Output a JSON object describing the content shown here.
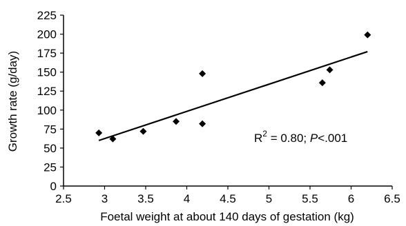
{
  "chart_data": {
    "type": "scatter",
    "xlabel": "Foetal weight at about 140 days of gestation (kg)",
    "ylabel": "Growth rate (g/day)",
    "xlim": [
      2.5,
      6.5
    ],
    "ylim": [
      0,
      225
    ],
    "x_ticks": [
      2.5,
      3,
      3.5,
      4,
      4.5,
      5,
      5.5,
      6,
      6.5
    ],
    "x_tick_labels": [
      "2.5",
      "3",
      "3.5",
      "4",
      "4.5",
      "5",
      "5.5",
      "6",
      "6.5"
    ],
    "y_ticks": [
      0,
      25,
      50,
      75,
      100,
      125,
      150,
      175,
      200,
      225
    ],
    "y_tick_labels": [
      "0",
      "25",
      "50",
      "75",
      "100",
      "125",
      "150",
      "175",
      "200",
      "225"
    ],
    "grid": false,
    "marker": "diamond",
    "marker_color": "#000000",
    "points": [
      {
        "x": 2.93,
        "y": 70
      },
      {
        "x": 3.1,
        "y": 62
      },
      {
        "x": 3.47,
        "y": 72
      },
      {
        "x": 3.87,
        "y": 85
      },
      {
        "x": 4.19,
        "y": 148
      },
      {
        "x": 4.19,
        "y": 82
      },
      {
        "x": 5.65,
        "y": 136
      },
      {
        "x": 5.74,
        "y": 153
      },
      {
        "x": 6.2,
        "y": 199
      }
    ],
    "trendline": {
      "x": [
        2.93,
        6.2
      ],
      "y": [
        60,
        177
      ]
    },
    "annotation": {
      "r_label": "R",
      "r_power": "2",
      "r_value": " = 0.80; ",
      "p_label": "P",
      "p_value": "<.001"
    }
  }
}
